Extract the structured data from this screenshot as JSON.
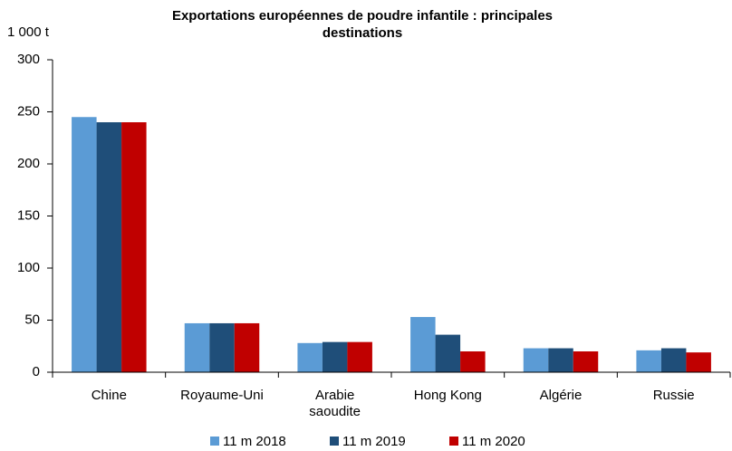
{
  "chart_data": {
    "type": "bar",
    "title": "Exportations européennes de poudre infantile : principales destinations",
    "y_axis_label": "1 000 t",
    "categories": [
      "Chine",
      "Royaume-Uni",
      "Arabie saoudite",
      "Hong Kong",
      "Algérie",
      "Russie"
    ],
    "series": [
      {
        "name": "11 m 2018",
        "color": "#5b9bd5",
        "values": [
          245,
          47,
          28,
          53,
          23,
          21
        ]
      },
      {
        "name": "11 m 2019",
        "color": "#1f4e79",
        "values": [
          240,
          47,
          29,
          36,
          23,
          23
        ]
      },
      {
        "name": "11 m 2020",
        "color": "#c00000",
        "values": [
          240,
          47,
          29,
          20,
          20,
          19
        ]
      }
    ],
    "ylim": [
      0,
      300
    ],
    "yticks": [
      0,
      50,
      100,
      150,
      200,
      250,
      300
    ],
    "grid": false,
    "legend": "bottom"
  }
}
